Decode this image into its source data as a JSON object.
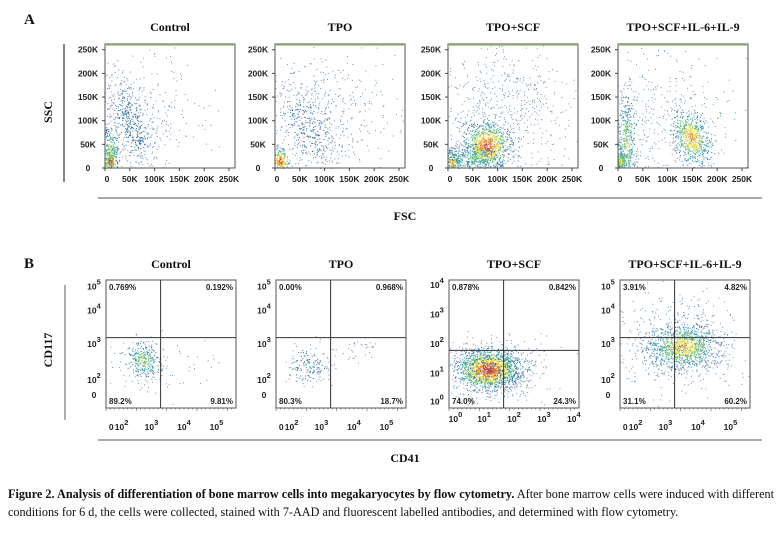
{
  "figure": {
    "caption_title": "Figure 2. Analysis of differentiation of bone marrow cells into megakaryocytes by flow cytometry.",
    "caption_body": "After bone marrow cells were induced with different conditions for 6 d, the cells were collected, stained with 7-AAD and fluorescent labelled antibodies, and determined with flow cytometry."
  },
  "chart_data": [
    {
      "panel": "A",
      "type": "scatter",
      "xlabel": "FSC",
      "ylabel": "SSC",
      "xlim": [
        0,
        262144
      ],
      "ylim": [
        0,
        262144
      ],
      "x_ticks": [
        "0",
        "50K",
        "100K",
        "150K",
        "200K",
        "250K"
      ],
      "y_ticks": [
        "0",
        "50K",
        "100K",
        "150K",
        "200K",
        "250K"
      ],
      "color_scale": "density (blue-green-yellow-red)",
      "plots": [
        {
          "title": "Control"
        },
        {
          "title": "TPO"
        },
        {
          "title": "TPO+SCF"
        },
        {
          "title": "TPO+SCF+IL-6+IL-9"
        }
      ]
    },
    {
      "panel": "B",
      "type": "scatter",
      "xlabel": "CD41",
      "ylabel": "CD117",
      "scale": "log",
      "plots": [
        {
          "title": "Control",
          "x_ticks": [
            "0",
            "10^2",
            "10^3",
            "10^4",
            "10^5"
          ],
          "y_ticks": [
            "0",
            "10^2",
            "10^3",
            "10^4",
            "10^5"
          ],
          "quadrants": {
            "upper_left": "0.769%",
            "upper_right": "0.192%",
            "lower_left": "89.2%",
            "lower_right": "9.81%"
          }
        },
        {
          "title": "TPO",
          "x_ticks": [
            "0",
            "10^2",
            "10^3",
            "10^4",
            "10^5"
          ],
          "y_ticks": [
            "0",
            "10^2",
            "10^3",
            "10^4",
            "10^5"
          ],
          "quadrants": {
            "upper_left": "0.00%",
            "upper_right": "0.968%",
            "lower_left": "80.3%",
            "lower_right": "18.7%"
          }
        },
        {
          "title": "TPO+SCF",
          "x_ticks": [
            "10^0",
            "10^1",
            "10^2",
            "10^3",
            "10^4"
          ],
          "y_ticks": [
            "10^0",
            "10^1",
            "10^2",
            "10^3",
            "10^4"
          ],
          "quadrants": {
            "upper_left": "0.878%",
            "upper_right": "0.842%",
            "lower_left": "74.0%",
            "lower_right": "24.3%"
          }
        },
        {
          "title": "TPO+SCF+IL-6+IL-9",
          "x_ticks": [
            "0",
            "10^2",
            "10^3",
            "10^4",
            "10^5"
          ],
          "y_ticks": [
            "0",
            "10^2",
            "10^3",
            "10^4",
            "10^5"
          ],
          "quadrants": {
            "upper_left": "3.91%",
            "upper_right": "4.82%",
            "lower_left": "31.1%",
            "lower_right": "60.2%"
          }
        }
      ]
    }
  ]
}
